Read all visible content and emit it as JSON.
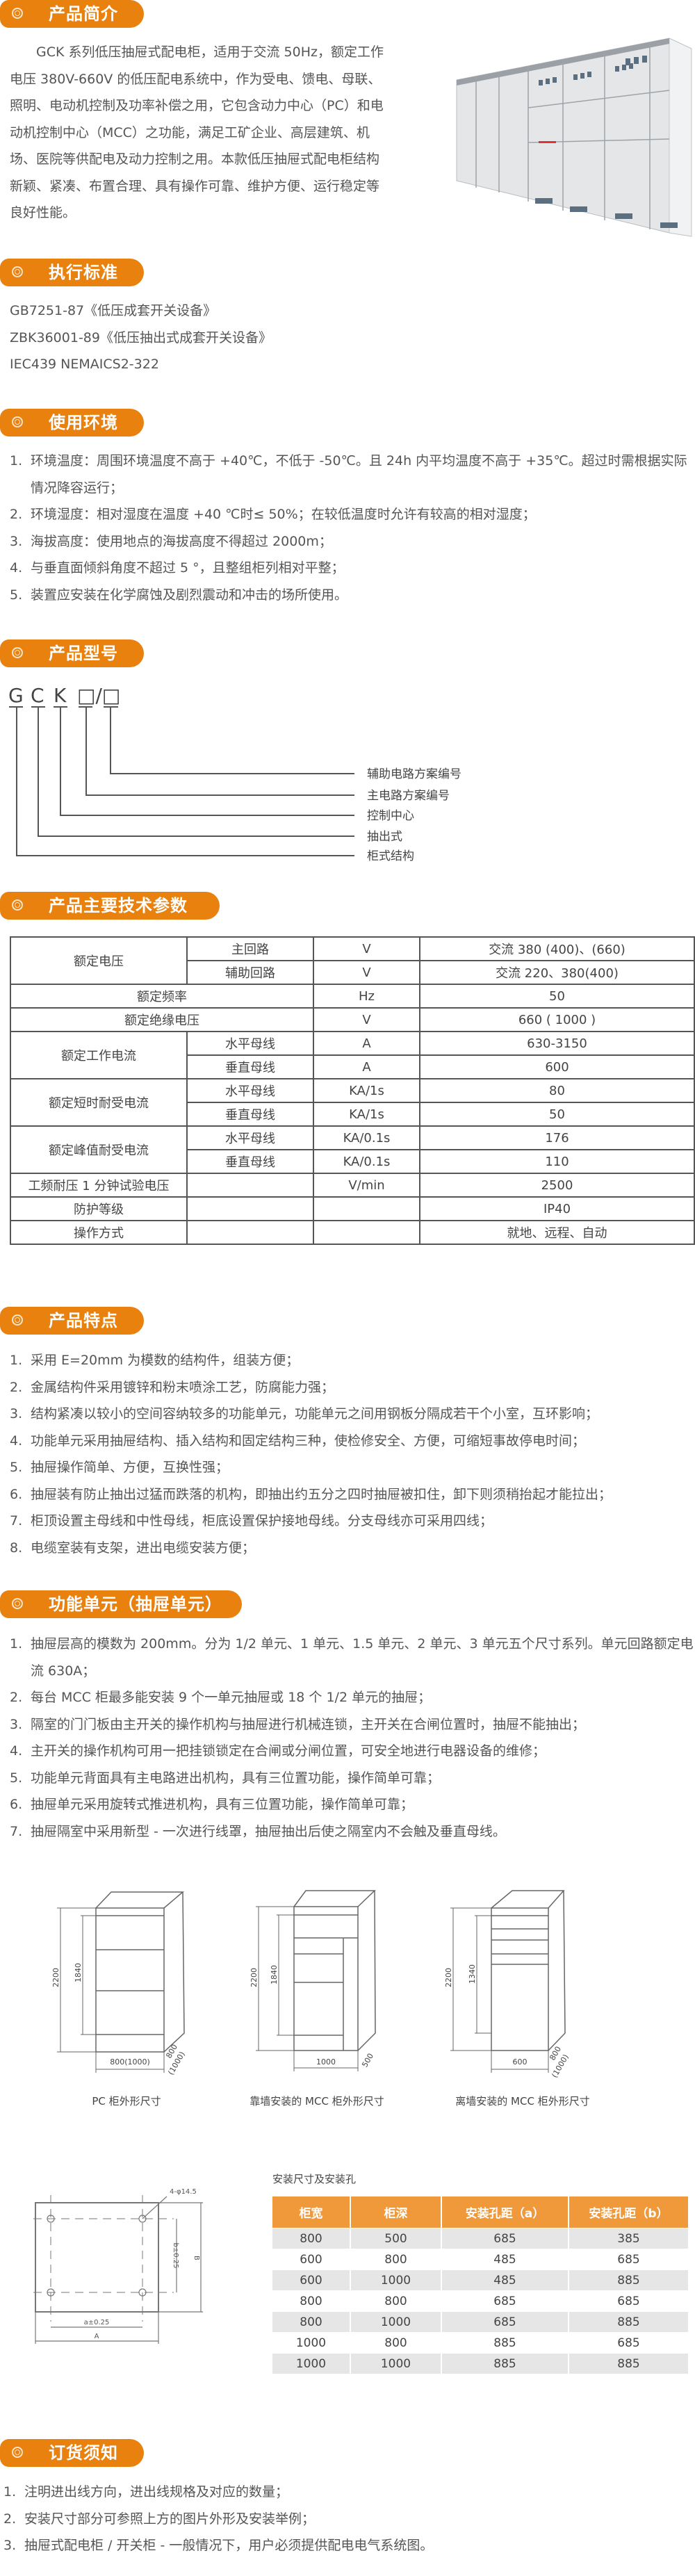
{
  "colors": {
    "accent": "#e9810e",
    "table_header": "#f0993a",
    "stripe": "#e6e6e6"
  },
  "sections": {
    "intro": {
      "title": "产品简介",
      "icon": "ring-icon",
      "text": "GCK 系列低压抽屉式配电柜，适用于交流 50Hz，额定工作电压 380V-660V 的低压配电系统中，作为受电、馈电、母联、照明、电动机控制及功率补偿之用，它包含动力中心（PC）和电动机控制中心（MCC）之功能，满足工矿企业、高层建筑、机场、医院等供配电及动力控制之用。本款低压抽屉式配电柜结构新颖、紧凑、布置合理、具有操作可靠、维护方便、运行稳定等良好性能。"
    },
    "standards": {
      "title": "执行标准",
      "items": [
        "GB7251-87《低压成套开关设备》",
        "ZBK36001-89《低压抽出式成套开关设备》",
        "IEC439 NEMAICS2-322"
      ]
    },
    "environment": {
      "title": "使用环境",
      "items": [
        "环境温度：周围环境温度不高于 +40℃，不低于 -50℃。且 24h 内平均温度不高于 +35℃。超过时需根据实际情况降容运行；",
        "环境湿度：相对湿度在温度 +40 ℃时≤ 50%；在较低温度时允许有较高的相对湿度；",
        "海拔高度：使用地点的海拔高度不得超过 2000m；",
        "与垂直面倾斜角度不超过 5 °，且整组柜列相对平整；",
        "装置应安装在化学腐蚀及剧烈震动和冲击的场所使用。"
      ]
    },
    "model": {
      "title": "产品型号",
      "letters": [
        "G",
        "C",
        "K",
        "□/□"
      ],
      "labels": [
        "辅助电路方案编号",
        "主电路方案编号",
        "控制中心",
        "抽出式",
        "柜式结构"
      ]
    },
    "specs": {
      "title": "产品主要技术参数",
      "rows": [
        [
          "额定电压",
          "主回路",
          "V",
          "交流 380 (400)、(660)"
        ],
        [
          "",
          "辅助回路",
          "V",
          "交流 220、380(400)"
        ],
        [
          "额定频率",
          "",
          "Hz",
          "50"
        ],
        [
          "额定绝缘电压",
          "",
          "V",
          "660 ( 1000 )"
        ],
        [
          "额定工作电流",
          "水平母线",
          "A",
          "630-3150"
        ],
        [
          "",
          "垂直母线",
          "A",
          "600"
        ],
        [
          "额定短时耐受电流",
          "水平母线",
          "KA/1s",
          "80"
        ],
        [
          "",
          "垂直母线",
          "KA/1s",
          "50"
        ],
        [
          "额定峰值耐受电流",
          "水平母线",
          "KA/0.1s",
          "176"
        ],
        [
          "",
          "垂直母线",
          "KA/0.1s",
          "110"
        ],
        [
          "工频耐压 1 分钟试验电压",
          "",
          "V/min",
          "2500"
        ],
        [
          "防护等级",
          "",
          "",
          "IP40"
        ],
        [
          "操作方式",
          "",
          "",
          "就地、远程、自动"
        ]
      ]
    },
    "features": {
      "title": "产品特点",
      "items": [
        "采用 E=20mm 为模数的结构件，组装方便；",
        "金属结构件采用镀锌和粉末喷涂工艺，防腐能力强；",
        "结构紧凑以较小的空间容纳较多的功能单元，功能单元之间用钢板分隔成若干个小室，互环影响；",
        "功能单元采用抽屉结构、插入结构和固定结构三种，使检修安全、方便，可缩短事故停电时间；",
        "抽屉操作简单、方便，互换性强；",
        "抽屉装有防止抽出过猛而跌落的机构，即抽出约五分之四时抽屉被扣住，卸下则须稍抬起才能拉出；",
        "柜顶设置主母线和中性母线，柜底设置保护接地母线。分支母线亦可采用四线；",
        "电缆室装有支架，进出电缆安装方便；"
      ]
    },
    "units": {
      "title": "功能单元（抽屉单元）",
      "items": [
        "抽屉层高的模数为 200mm。分为 1/2 单元、1 单元、1.5 单元、2 单元、3 单元五个尺寸系列。单元回路额定电流 630A；",
        "每台 MCC 柜最多能安装 9 个一单元抽屉或 18 个 1/2 单元的抽屉；",
        "隔室的门门板由主开关的操作机构与抽屉进行机械连锁，主开关在合闸位置时，抽屉不能抽出；",
        "主开关的操作机构可用一把挂锁锁定在合闸或分闸位置，可安全地进行电器设备的维修；",
        "功能单元背面具有主电路进出机构，具有三位置功能，操作简单可靠；",
        "抽屉单元采用旋转式推进机构，具有三位置功能，操作简单可靠；",
        "抽屉隔室中采用新型 - 一次进行线罩，抽屉抽出后使之隔室内不会触及垂直母线。"
      ]
    },
    "cabinets": [
      {
        "caption": "PC 柜外形尺寸",
        "height": "2200",
        "inner": "1840",
        "width": "800(1000)",
        "depth": "800",
        "depth_alt": "(1000)"
      },
      {
        "caption": "靠墙安装的 MCC 柜外形尺寸",
        "height": "2200",
        "inner": "1840",
        "width": "1000",
        "depth": "500"
      },
      {
        "caption": "离墙安装的 MCC 柜外形尺寸",
        "height": "2200",
        "inner": "1340",
        "width": "600",
        "depth": "800",
        "depth_alt": "(1000)"
      }
    ],
    "mounting": {
      "diagram": {
        "holes": "4-φ14.5",
        "b": "b±0.25",
        "B": "B",
        "a": "a±0.25",
        "A": "A"
      },
      "title": "安装尺寸及安装孔",
      "headers": [
        "柜宽",
        "柜深",
        "安装孔距（a）",
        "安装孔距（b）"
      ],
      "rows": [
        [
          "800",
          "500",
          "685",
          "385"
        ],
        [
          "600",
          "800",
          "485",
          "685"
        ],
        [
          "600",
          "1000",
          "485",
          "885"
        ],
        [
          "800",
          "800",
          "685",
          "685"
        ],
        [
          "800",
          "1000",
          "685",
          "885"
        ],
        [
          "1000",
          "800",
          "885",
          "685"
        ],
        [
          "1000",
          "1000",
          "885",
          "885"
        ]
      ]
    },
    "ordering": {
      "title": "订货须知",
      "items": [
        "注明进出线方向，进出线规格及对应的数量；",
        "安装尺寸部分可参照上方的图片外形及安装举例；",
        "抽屉式配电柜 / 开关柜 - 一般情况下，用户必须提供配电电气系统图。"
      ]
    }
  }
}
